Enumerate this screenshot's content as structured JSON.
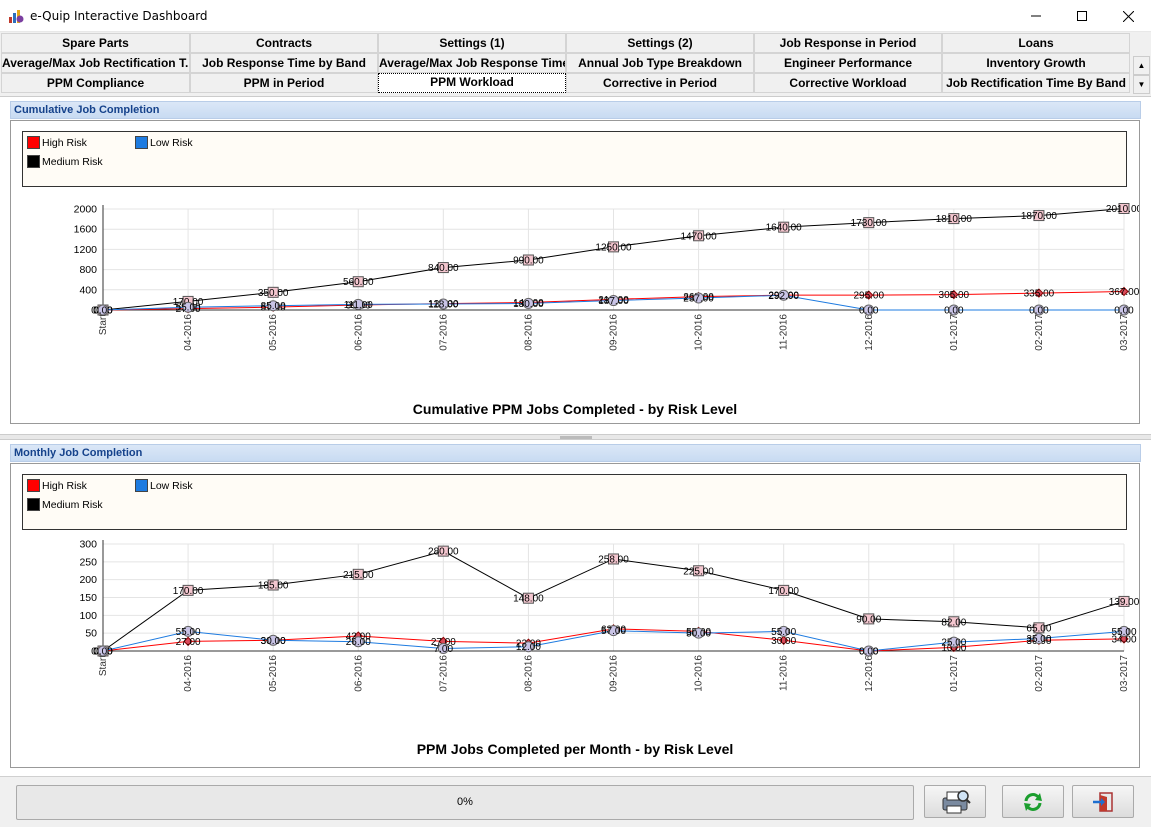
{
  "window": {
    "title": "e-Quip Interactive Dashboard",
    "app_icon": "bar-chart-app-icon",
    "min_icon": "minimize-icon",
    "max_icon": "maximize-icon",
    "close_icon": "close-icon"
  },
  "tabs": [
    [
      "Spare Parts",
      "Contracts",
      "Settings (1)",
      "Settings (2)",
      "Job Response in Period",
      "Loans"
    ],
    [
      "Average/Max Job Rectification T...",
      "Job Response Time by Band",
      "Average/Max Job Response Time",
      "Annual Job Type Breakdown",
      "Engineer Performance",
      "Inventory Growth"
    ],
    [
      "PPM Compliance",
      "PPM in Period",
      "PPM Workload",
      "Corrective in Period",
      "Corrective Workload",
      "Job Rectification Time By Band"
    ]
  ],
  "active_tab": "PPM Workload",
  "legend": {
    "items": [
      {
        "label": "High Risk",
        "color": "#ff0000"
      },
      {
        "label": "Low Risk",
        "color": "#1e7be0"
      },
      {
        "label": "Medium Risk",
        "color": "#000000"
      }
    ]
  },
  "panels": {
    "cumulative": {
      "header": "Cumulative Job Completion",
      "chart_data": {
        "type": "line",
        "title": "Cumulative PPM Jobs Completed - by Risk Level",
        "categories": [
          "Start",
          "04-2016",
          "05-2016",
          "06-2016",
          "07-2016",
          "08-2016",
          "09-2016",
          "10-2016",
          "11-2016",
          "12-2016",
          "01-2017",
          "02-2017",
          "03-2017"
        ],
        "ylim": [
          0,
          2000
        ],
        "yticks": [
          0,
          400,
          800,
          1200,
          1600,
          2000
        ],
        "grid": true,
        "series": [
          {
            "name": "Medium Risk",
            "color": "#000000",
            "values": [
              0,
              170,
              350,
              560,
              840,
              990,
              1250,
              1470,
              1640,
              1730,
              1810,
              1870,
              2010
            ]
          },
          {
            "name": "High Risk",
            "color": "#ff0000",
            "values": [
              0,
              27,
              57,
              99,
              126,
              148,
              210,
              265,
              295,
              295,
              305,
              335,
              367
            ]
          },
          {
            "name": "Low Risk",
            "color": "#1e7be0",
            "values": [
              0,
              55,
              85,
              111,
              118,
              130,
              187,
              237,
              292,
              0,
              0,
              0,
              0
            ]
          }
        ]
      }
    },
    "monthly": {
      "header": "Monthly Job Completion",
      "chart_data": {
        "type": "line",
        "title": "PPM Jobs Completed per Month - by Risk Level",
        "categories": [
          "Start",
          "04-2016",
          "05-2016",
          "06-2016",
          "07-2016",
          "08-2016",
          "09-2016",
          "10-2016",
          "11-2016",
          "12-2016",
          "01-2017",
          "02-2017",
          "03-2017"
        ],
        "ylim": [
          0,
          300
        ],
        "yticks": [
          0,
          50,
          100,
          150,
          200,
          250,
          300
        ],
        "grid": true,
        "series": [
          {
            "name": "Medium Risk",
            "color": "#000000",
            "values": [
              0,
              170,
              185,
              215,
              280,
              148,
              258,
              225,
              170,
              90,
              82,
              65,
              139
            ]
          },
          {
            "name": "High Risk",
            "color": "#ff0000",
            "values": [
              0,
              27,
              30,
              42,
              27,
              22,
              62,
              55,
              30,
              0,
              10,
              30,
              34
            ]
          },
          {
            "name": "Low Risk",
            "color": "#1e7be0",
            "values": [
              0,
              55,
              30,
              26,
              7,
              12,
              57,
              50,
              55,
              0,
              25,
              35,
              55
            ]
          }
        ]
      }
    }
  },
  "bottom": {
    "progress": "0%",
    "print_icon": "print-preview-icon",
    "refresh_icon": "refresh-icon",
    "exit_icon": "exit-icon"
  }
}
